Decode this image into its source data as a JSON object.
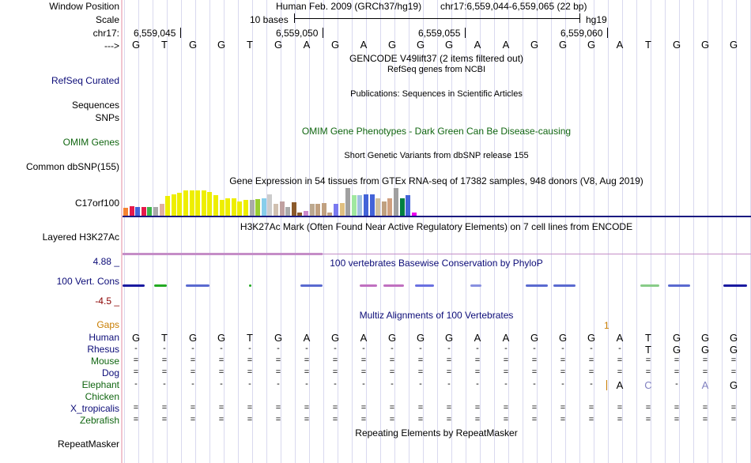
{
  "labels": {
    "window_position": "Window Position",
    "scale": "Scale",
    "chrom": "chr17:",
    "arrow": "--->",
    "refseq": "RefSeq Curated",
    "sequences": "Sequences",
    "snps": "SNPs",
    "omim": "OMIM Genes",
    "dbsnp": "Common dbSNP(155)",
    "gene": "C17orf100",
    "h3k27ac": "Layered H3K27Ac",
    "cons_max": "4.88 _",
    "cons_label": "100 Vert. Cons",
    "cons_min": "-4.5 _",
    "gaps": "Gaps",
    "human": "Human",
    "rhesus": "Rhesus",
    "mouse": "Mouse",
    "dog": "Dog",
    "elephant": "Elephant",
    "chicken": "Chicken",
    "xtrop": "X_tropicalis",
    "zebrafish": "Zebrafish",
    "repeatmasker": "RepeatMasker"
  },
  "header": {
    "assembly": "Human Feb. 2009 (GRCh37/hg19)",
    "position": "chr17:6,559,044-6,559,065 (22 bp)",
    "scale_text": "10 bases",
    "scale_db": "hg19",
    "coords": [
      "6,559,045",
      "6,559,050",
      "6,559,055",
      "6,559,060"
    ]
  },
  "sequence": [
    "G",
    "T",
    "G",
    "G",
    "T",
    "G",
    "A",
    "G",
    "A",
    "G",
    "G",
    "G",
    "A",
    "A",
    "G",
    "G",
    "G",
    "A",
    "T",
    "G",
    "G",
    "G"
  ],
  "tracks": {
    "gencode": "GENCODE V49lift37 (2 items filtered out)",
    "refseq_desc": "RefSeq genes from NCBI",
    "publications": "Publications: Sequences in Scientific Articles",
    "omim_desc": "OMIM Gene Phenotypes - Dark Green Can Be Disease-causing",
    "dbsnp_desc": "Short Genetic Variants from dbSNP release 155",
    "gtex_desc": "Gene Expression in 54 tissues from GTEx RNA-seq of 17382 samples, 948 donors (V8, Aug 2019)",
    "h3k27ac_desc": "H3K27Ac Mark (Often Found Near Active Regulatory Elements) on 7 cell lines from ENCODE",
    "phylop_desc": "100 vertebrates Basewise Conservation by PhyloP",
    "multiz_desc": "Multiz Alignments of 100 Vertebrates",
    "repeat_desc": "Repeating Elements by RepeatMasker",
    "gap_count": "1"
  },
  "alignment": {
    "human": [
      "G",
      "T",
      "G",
      "G",
      "T",
      "G",
      "A",
      "G",
      "A",
      "G",
      "G",
      "G",
      "A",
      "A",
      "G",
      "G",
      "G",
      "A",
      "T",
      "G",
      "G",
      "G"
    ],
    "rhesus": [
      "-",
      "-",
      "-",
      "-",
      "-",
      "-",
      "-",
      "-",
      "-",
      "-",
      "-",
      "-",
      "-",
      "-",
      "-",
      "-",
      "-",
      "-",
      "T",
      "G",
      "G",
      "G"
    ],
    "mouse": [
      "=",
      "=",
      "=",
      "=",
      "=",
      "=",
      "=",
      "=",
      "=",
      "=",
      "=",
      "=",
      "=",
      "=",
      "=",
      "=",
      "=",
      "=",
      "=",
      "=",
      "=",
      "="
    ],
    "dog": [
      "=",
      "=",
      "=",
      "=",
      "=",
      "=",
      "=",
      "=",
      "=",
      "=",
      "=",
      "=",
      "=",
      "=",
      "=",
      "=",
      "=",
      "=",
      "=",
      "=",
      "=",
      "="
    ],
    "elephant": [
      "-",
      "-",
      "-",
      "-",
      "-",
      "-",
      "-",
      "-",
      "-",
      "-",
      "-",
      "-",
      "-",
      "-",
      "-",
      "-",
      "-",
      "A",
      "C",
      "-",
      "A",
      "G"
    ],
    "xtrop": [
      "=",
      "=",
      "=",
      "=",
      "=",
      "=",
      "=",
      "=",
      "=",
      "=",
      "=",
      "=",
      "=",
      "=",
      "=",
      "=",
      "=",
      "=",
      "=",
      "=",
      "=",
      "="
    ],
    "zebrafish": [
      "=",
      "=",
      "=",
      "=",
      "=",
      "=",
      "=",
      "=",
      "=",
      "=",
      "=",
      "=",
      "=",
      "=",
      "=",
      "=",
      "=",
      "=",
      "=",
      "=",
      "=",
      "="
    ]
  },
  "gtex_levels": [
    0.28,
    0.35,
    0.3,
    0.3,
    0.32,
    0.3,
    0.42,
    0.72,
    0.78,
    0.82,
    0.9,
    0.9,
    0.92,
    0.92,
    0.85,
    0.75,
    0.58,
    0.62,
    0.62,
    0.5,
    0.58,
    0.58,
    0.6,
    0.62,
    0.78,
    0.42,
    0.52,
    0.3,
    0.48,
    0.1,
    0.18,
    0.42,
    0.42,
    0.46,
    0.1,
    0.42,
    0.45,
    1.0,
    0.75,
    0.75,
    0.78,
    0.78,
    0.62,
    0.52,
    0.62,
    1.0,
    0.62,
    0.75,
    0.12
  ],
  "gtex_colors": [
    "#f58231",
    "#e6194b",
    "#4363d8",
    "#e6194b",
    "#3cb44b",
    "#a9a9a9",
    "#e0b0a0",
    "#eeee00",
    "#eeee00",
    "#eeee00",
    "#eeee00",
    "#eeee00",
    "#eeee00",
    "#eeee00",
    "#eeee00",
    "#eeee00",
    "#eeee00",
    "#eeee00",
    "#eeee00",
    "#eeee00",
    "#eeee00",
    "#aaaaaa",
    "#9acd32",
    "#87ceeb",
    "#cccccc",
    "#d0c0b0",
    "#c0a0a0",
    "#aaaaaa",
    "#8b5a2b",
    "#8b5a2b",
    "#cc88cc",
    "#bca88f",
    "#c0a080",
    "#c0a080",
    "#c0a080",
    "#7a7af0",
    "#e0c080",
    "#a0a0a0",
    "#a0e8a0",
    "#a0c0e0",
    "#4363d8",
    "#4363d8",
    "#d0c0a0",
    "#c0a080",
    "#d0a080",
    "#a0a0a0",
    "#008040",
    "#4363d8",
    "#ee00ee"
  ]
}
